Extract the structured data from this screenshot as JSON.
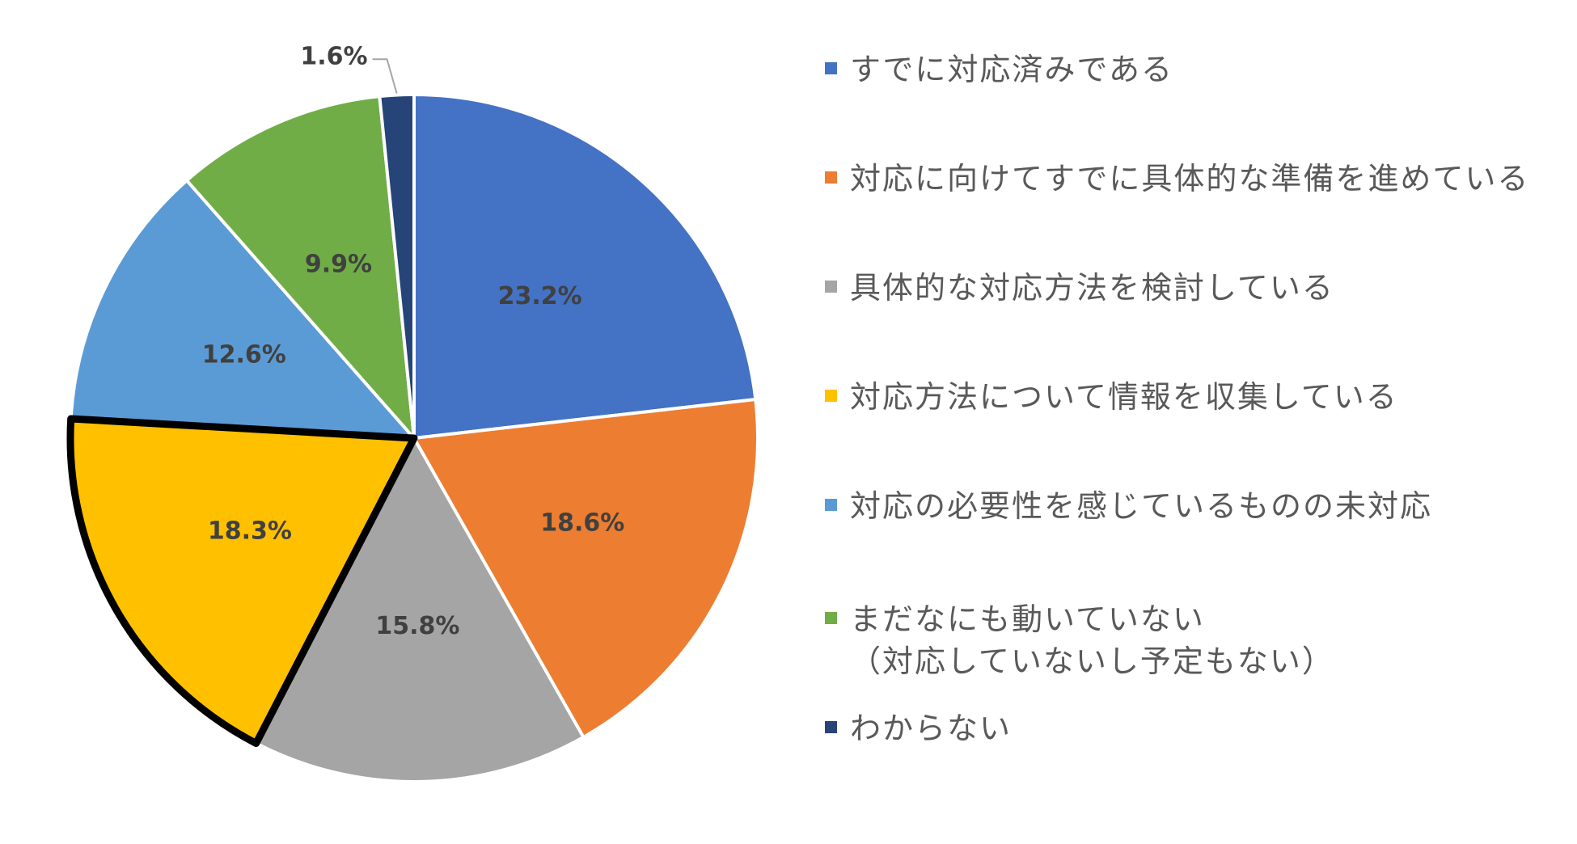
{
  "chart_data": {
    "type": "pie",
    "title": "",
    "start_angle_deg": 0,
    "direction": "clockwise",
    "highlighted_slice": "対応方法について情報を収集している",
    "slices": [
      {
        "name": "すでに対応済みである",
        "value": 23.2,
        "label": "23.2%",
        "color": "#4472C4"
      },
      {
        "name": "対応に向けてすでに具体的な準備を進めている",
        "value": 18.6,
        "label": "18.6%",
        "color": "#ED7D31"
      },
      {
        "name": "具体的な対応方法を検討している",
        "value": 15.8,
        "label": "15.8%",
        "color": "#A5A5A5"
      },
      {
        "name": "対応方法について情報を収集している",
        "value": 18.3,
        "label": "18.3%",
        "color": "#FFC000"
      },
      {
        "name": "対応の必要性を感じているものの未対応",
        "value": 12.6,
        "label": "12.6%",
        "color": "#5B9BD5"
      },
      {
        "name": "まだなにも動いていない（対応していないし予定もない）",
        "value": 9.9,
        "label": "9.9%",
        "color": "#70AD47"
      },
      {
        "name": "わからない",
        "value": 1.6,
        "label": "1.6%",
        "color": "#264478"
      }
    ],
    "legend": {
      "placement": "right",
      "items": [
        {
          "text": "すでに対応済みである",
          "subtext": "",
          "color": "#4472C4"
        },
        {
          "text": "対応に向けてすでに具体的な準備を進めている",
          "subtext": "",
          "color": "#ED7D31"
        },
        {
          "text": "具体的な対応方法を検討している",
          "subtext": "",
          "color": "#A5A5A5"
        },
        {
          "text": "対応方法について情報を収集している",
          "subtext": "",
          "color": "#FFC000"
        },
        {
          "text": "対応の必要性を感じているものの未対応",
          "subtext": "",
          "color": "#5B9BD5"
        },
        {
          "text": "まだなにも動いていない",
          "subtext": "（対応していないし予定もない）",
          "color": "#70AD47"
        },
        {
          "text": "わからない",
          "subtext": "",
          "color": "#264478"
        }
      ]
    }
  }
}
